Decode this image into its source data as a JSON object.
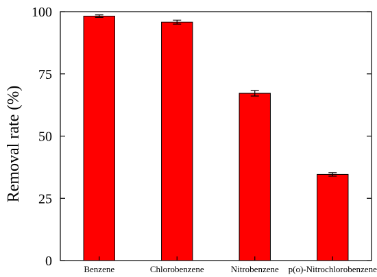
{
  "chart_data": {
    "type": "bar",
    "title": "",
    "xlabel": "",
    "ylabel": "Removal rate (%)",
    "categories": [
      "Benzene",
      "Chlorobenzene",
      "Nitrobenzene",
      "p(o)-Nitrochlorobenzene"
    ],
    "values": [
      98.2,
      95.8,
      67.2,
      34.6
    ],
    "errors": [
      0.5,
      0.8,
      1.1,
      0.7
    ],
    "ylim": [
      0,
      100
    ],
    "yticks": [
      "0",
      "25",
      "50",
      "75",
      "100"
    ],
    "grid": false,
    "legend": "none",
    "colors": {
      "bar": "#ff0000",
      "outline": "#000000"
    }
  }
}
